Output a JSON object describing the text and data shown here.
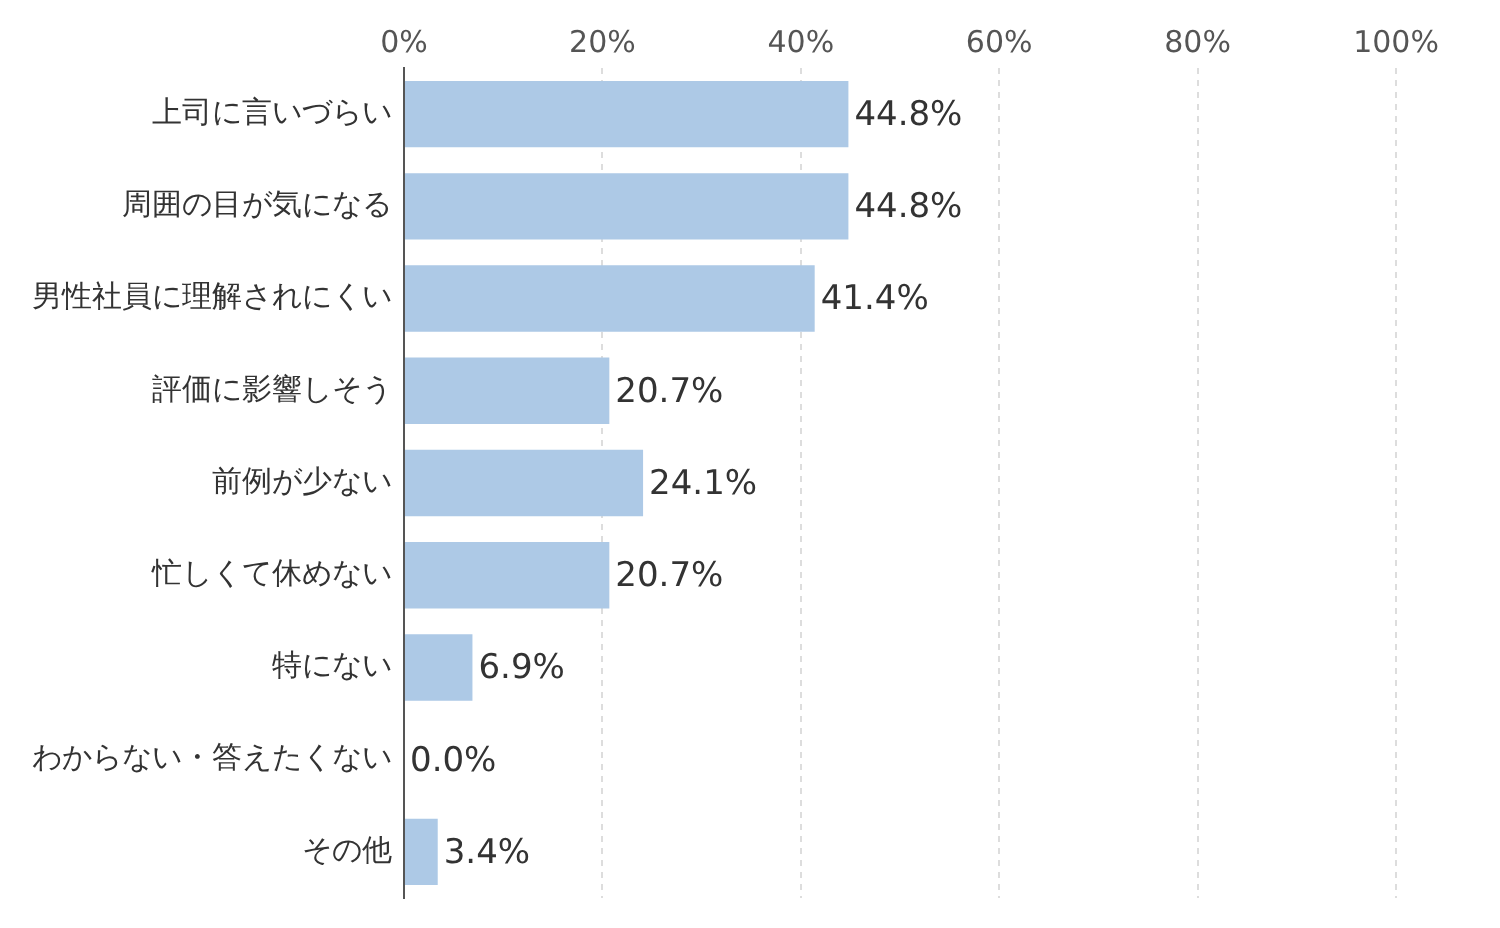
{
  "chart_data": {
    "type": "bar",
    "orientation": "horizontal",
    "categories": [
      "上司に言いづらい",
      "周囲の目が気になる",
      "男性社員に理解されにくい",
      "評価に影響しそう",
      "前例が少ない",
      "忙しくて休めない",
      "特にない",
      "わからない・答えたくない",
      "その他"
    ],
    "values": [
      44.8,
      44.8,
      41.4,
      20.7,
      24.1,
      20.7,
      6.9,
      0.0,
      3.4
    ],
    "value_labels": [
      "44.8%",
      "44.8%",
      "41.4%",
      "20.7%",
      "24.1%",
      "20.7%",
      "6.9%",
      "0.0%",
      "3.4%"
    ],
    "color": "#adc9e6",
    "xlim": [
      0,
      100
    ],
    "xticks": [
      {
        "value": 0,
        "label": "0%"
      },
      {
        "value": 20,
        "label": "20%"
      },
      {
        "value": 40,
        "label": "40%"
      },
      {
        "value": 60,
        "label": "60%"
      },
      {
        "value": 80,
        "label": "80%"
      },
      {
        "value": 100,
        "label": "100%"
      }
    ],
    "grid": "x",
    "legend": false
  }
}
